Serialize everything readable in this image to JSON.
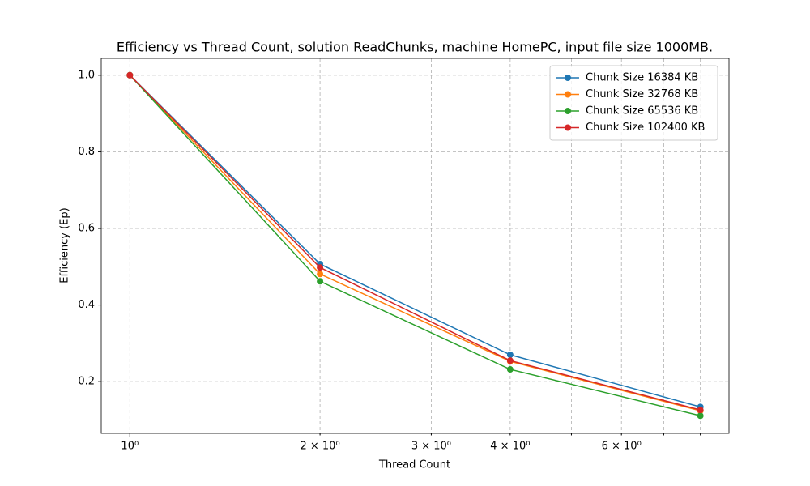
{
  "chart_data": {
    "type": "line",
    "title": "Efficiency vs Thread Count, solution ReadChunks, machine HomePC, input file size 1000MB.",
    "x_label": "Thread Count",
    "y_label": "Efficiency (Ep)",
    "x": [
      1,
      2,
      4,
      8
    ],
    "x_scale": "log",
    "xlim": [
      0.901,
      8.88
    ],
    "xticks": [
      {
        "value": 1,
        "label": "10⁰"
      },
      {
        "value": 2,
        "label": "2 × 10⁰"
      },
      {
        "value": 3,
        "label": "3 × 10⁰"
      },
      {
        "value": 4,
        "label": "4 × 10⁰"
      },
      {
        "value": 6,
        "label": "6 × 10⁰"
      }
    ],
    "xminorticks": [
      5,
      7,
      8
    ],
    "ylim": [
      0.065,
      1.044
    ],
    "yticks": [
      0.2,
      0.4,
      0.6,
      0.8,
      {
        "value": 1,
        "label": "1.0"
      }
    ],
    "grid": true,
    "legend": "upper right",
    "series": [
      {
        "name": "Chunk Size 16384 KB",
        "color": "#1f77b4",
        "values": [
          1.0,
          0.507,
          0.27,
          0.134
        ]
      },
      {
        "name": "Chunk Size 32768 KB",
        "color": "#ff7f0e",
        "values": [
          1.0,
          0.481,
          0.253,
          0.124
        ]
      },
      {
        "name": "Chunk Size 65536 KB",
        "color": "#2ca02c",
        "values": [
          1.0,
          0.462,
          0.232,
          0.111
        ]
      },
      {
        "name": "Chunk Size 102400 KB",
        "color": "#d62728",
        "values": [
          1.0,
          0.498,
          0.255,
          0.126
        ]
      }
    ]
  }
}
